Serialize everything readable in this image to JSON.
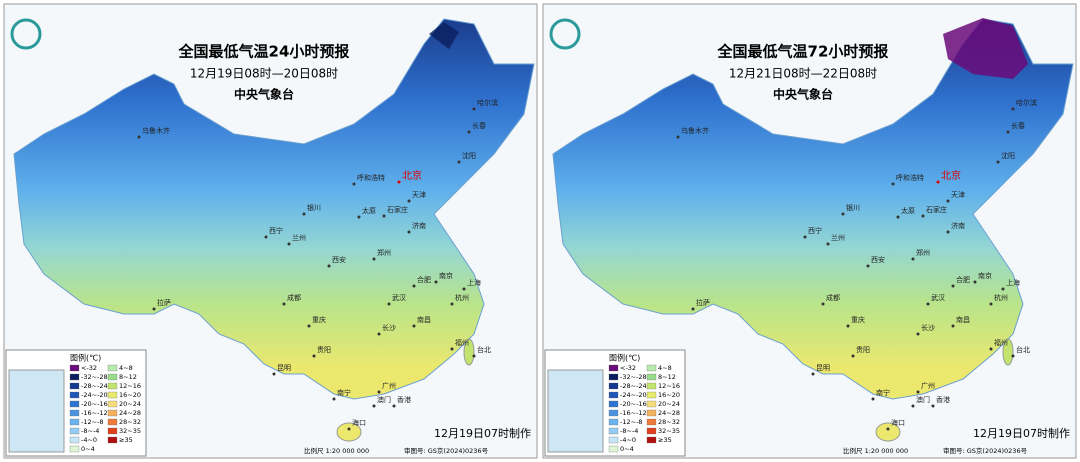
{
  "legend_title": "图例(℃)",
  "legend": [
    {
      "label": "<-32",
      "color": "#6a0a7a"
    },
    {
      "label": "-32~-28",
      "color": "#0b1f5e"
    },
    {
      "label": "-28~-24",
      "color": "#13388e"
    },
    {
      "label": "-24~-20",
      "color": "#1f55b5"
    },
    {
      "label": "-20~-16",
      "color": "#2f74d0"
    },
    {
      "label": "-16~-12",
      "color": "#4a95e2"
    },
    {
      "label": "-12~-8",
      "color": "#6ab3ef"
    },
    {
      "label": "-8~-4",
      "color": "#94cdf4"
    },
    {
      "label": "-4~0",
      "color": "#c4e6f8"
    },
    {
      "label": "0~4",
      "color": "#dff5d6"
    },
    {
      "label": "4~8",
      "color": "#b9eab0"
    },
    {
      "label": "8~12",
      "color": "#98dc8a"
    },
    {
      "label": "12~16",
      "color": "#c2e46e"
    },
    {
      "label": "16~20",
      "color": "#e8ec6c"
    },
    {
      "label": "20~24",
      "color": "#f6dc7a"
    },
    {
      "label": "24~28",
      "color": "#f4b25e"
    },
    {
      "label": "28~32",
      "color": "#ee7a3c"
    },
    {
      "label": "32~35",
      "color": "#e0401e"
    },
    {
      "label": "≥35",
      "color": "#b01010"
    }
  ],
  "cities": [
    "乌鲁木齐",
    "哈尔滨",
    "长春",
    "沈阳",
    "呼和浩特",
    "北京",
    "天津",
    "石家庄",
    "太原",
    "银川",
    "西宁",
    "兰州",
    "济南",
    "西安",
    "郑州",
    "合肥",
    "南京",
    "上海",
    "杭州",
    "武汉",
    "成都",
    "重庆",
    "长沙",
    "南昌",
    "福州",
    "台北",
    "贵阳",
    "昆明",
    "南宁",
    "广州",
    "澳门",
    "香港",
    "海口",
    "拉萨"
  ],
  "scale": "比例尺 1:20 000 000",
  "map_no": "审图号: GS京(2024)0236号",
  "made": "12月19日07时制作",
  "issuer": "中央气象台",
  "panels": [
    {
      "title": "全国最低气温24小时预报",
      "subtitle": "12月19日08时—20日08时"
    },
    {
      "title": "全国最低气温72小时预报",
      "subtitle": "12月21日08时—22日08时"
    }
  ]
}
